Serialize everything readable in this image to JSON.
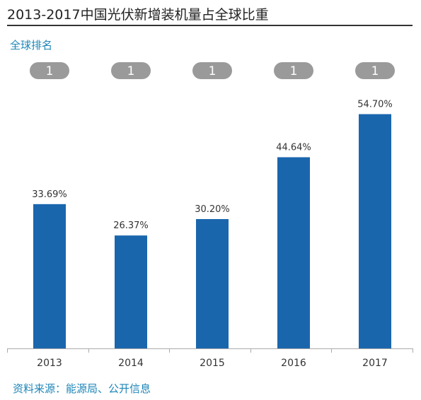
{
  "chart_data": {
    "type": "bar",
    "title": "2013-2017中国光伏新增装机量占全球比重",
    "categories": [
      "2013",
      "2014",
      "2015",
      "2016",
      "2017"
    ],
    "values": [
      33.69,
      26.37,
      30.2,
      44.64,
      54.7
    ],
    "value_labels": [
      "33.69%",
      "26.37%",
      "30.20%",
      "44.64%",
      "54.70%"
    ],
    "unit": "%",
    "ylim": [
      0,
      60
    ],
    "grid": false,
    "rank_label": "全球排名",
    "ranks": [
      "1",
      "1",
      "1",
      "1",
      "1"
    ],
    "source": "资料来源：能源局、公开信息",
    "colors": {
      "bar": "#1a66ad",
      "rank_pill": "#9a9a9a",
      "accent_text": "#1d86b8"
    }
  }
}
